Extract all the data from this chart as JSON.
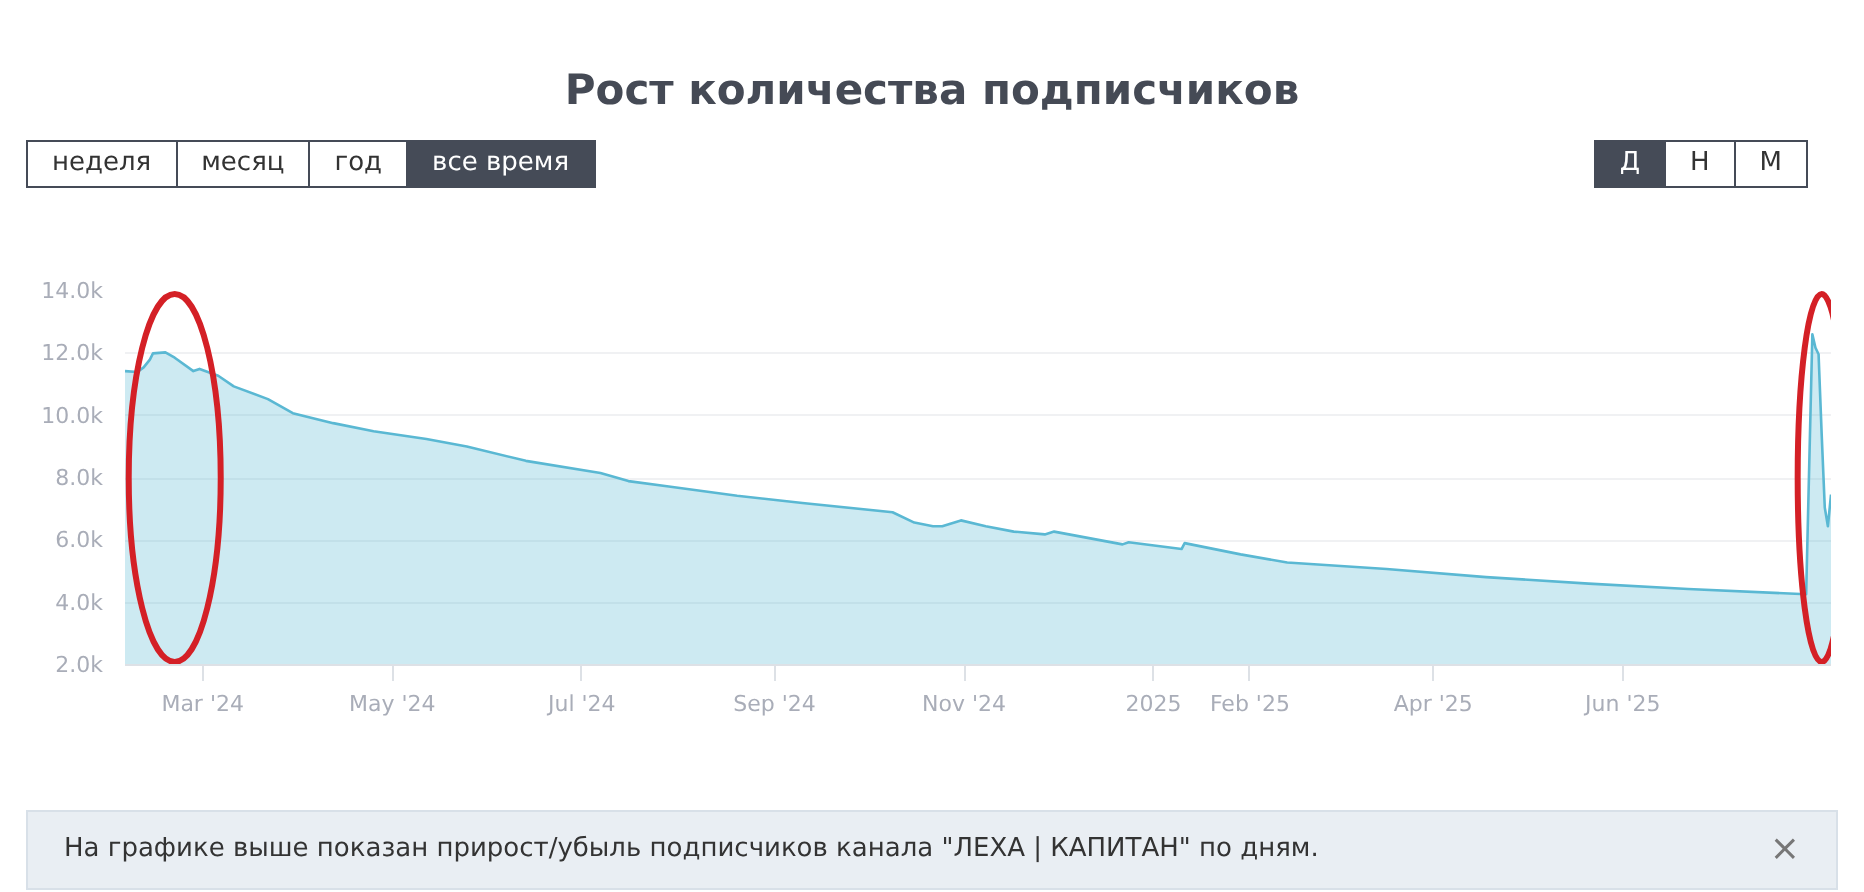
{
  "chart_data": {
    "type": "area",
    "title": "Рост количества подписчиков",
    "annotations": [
      "неделя",
      "месяц",
      "год",
      "все время",
      "Д",
      "Н",
      "М",
      "На графике выше показан прирост/убыль подписчиков канала \"ЛЕХА | КАПИТАН\" по дням.",
      "×"
    ],
    "x": [
      "2024-02-05",
      "2024-02-09",
      "2024-02-11",
      "2024-02-13",
      "2024-02-14",
      "2024-02-18",
      "2024-02-21",
      "2024-02-27",
      "2024-02-29",
      "2024-03-06",
      "2024-03-11",
      "2024-03-22",
      "2024-03-30",
      "2024-04-12",
      "2024-04-25",
      "2024-05-12",
      "2024-05-25",
      "2024-06-13",
      "2024-07-07",
      "2024-07-16",
      "2024-07-29",
      "2024-08-20",
      "2024-09-10",
      "2024-10-09",
      "2024-10-16",
      "2024-10-22",
      "2024-10-25",
      "2024-10-31",
      "2024-11-08",
      "2024-11-17",
      "2024-11-27",
      "2024-11-30",
      "2024-12-22",
      "2024-12-24",
      "2025-01-10",
      "2025-01-11",
      "2025-01-29",
      "2025-02-13",
      "2025-03-17",
      "2025-04-18",
      "2025-05-21",
      "2025-06-22",
      "2025-07-30",
      "2025-08-01",
      "2025-08-02",
      "2025-08-03",
      "2025-08-04",
      "2025-08-05",
      "2025-08-06",
      "2025-08-07"
    ],
    "series": [
      {
        "color": "#5ab8d3",
        "values": [
          11430,
          11400,
          11550,
          11800,
          12000,
          12030,
          11860,
          11430,
          11500,
          11280,
          10940,
          10530,
          10080,
          9760,
          9500,
          9250,
          9010,
          8550,
          8160,
          7900,
          7730,
          7430,
          7200,
          6900,
          6570,
          6450,
          6450,
          6640,
          6450,
          6280,
          6190,
          6280,
          5870,
          5940,
          5720,
          5910,
          5550,
          5290,
          5080,
          4820,
          4610,
          4440,
          4270,
          12610,
          12180,
          11970,
          9400,
          7050,
          6450,
          7470
        ]
      }
    ],
    "xlim": [
      "2024-02-05",
      "2025-08-07"
    ],
    "xticks": [
      {
        "value": "2024-03-01",
        "label": "Mar '24"
      },
      {
        "value": "2024-05-01",
        "label": "May '24"
      },
      {
        "value": "2024-07-01",
        "label": "Jul '24"
      },
      {
        "value": "2024-09-01",
        "label": "Sep '24"
      },
      {
        "value": "2024-11-01",
        "label": "Nov '24"
      },
      {
        "value": "2025-01-01",
        "label": "2025"
      },
      {
        "value": "2025-02-01",
        "label": "Feb '25"
      },
      {
        "value": "2025-04-01",
        "label": "Apr '25"
      },
      {
        "value": "2025-06-01",
        "label": "Jun '25"
      }
    ],
    "ylim": [
      2000,
      14000
    ],
    "yticks": [
      {
        "value": 2000,
        "label": "2.0k"
      },
      {
        "value": 4000,
        "label": "4.0k"
      },
      {
        "value": 6000,
        "label": "6.0k"
      },
      {
        "value": 8000,
        "label": "8.0k"
      },
      {
        "value": 10000,
        "label": "10.0k"
      },
      {
        "value": 12000,
        "label": "12.0k"
      },
      {
        "value": 14000,
        "label": "14.0k"
      }
    ],
    "grid": "y"
  }
}
